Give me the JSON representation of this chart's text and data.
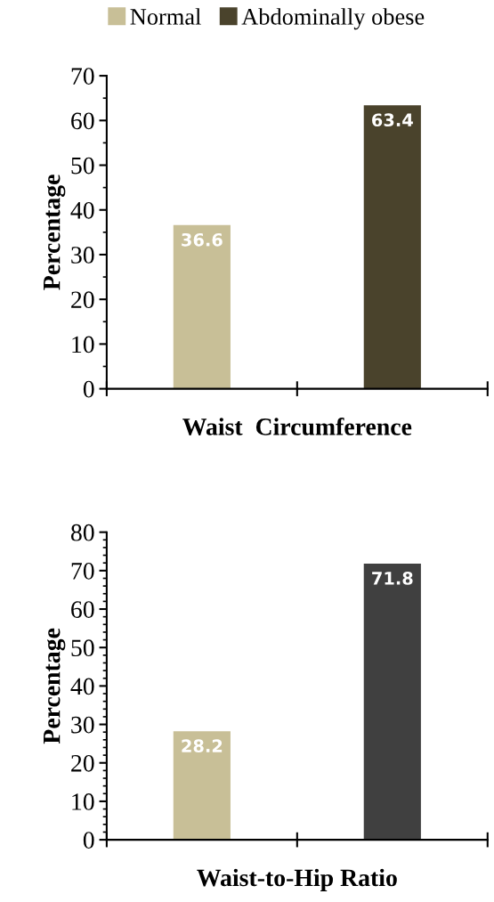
{
  "chart_data": [
    {
      "type": "bar",
      "xlabel": "Waist  Circumference",
      "ylabel": "Percentage",
      "categories": [
        null,
        null
      ],
      "series": [
        {
          "name": "Normal",
          "color": "#c8bf97",
          "values": [
            36.6,
            null
          ]
        },
        {
          "name": "Abdominally obese",
          "color": "#4a432c",
          "values": [
            null,
            63.4
          ]
        }
      ],
      "ylim": [
        0,
        70
      ],
      "yticks": [
        0,
        10,
        20,
        30,
        40,
        50,
        60,
        70
      ],
      "data_labels": true,
      "legend": "top",
      "tick_labels": "y"
    },
    {
      "type": "bar",
      "xlabel": "Waist-to-Hip Ratio",
      "ylabel": "Percentage",
      "categories": [
        null,
        null
      ],
      "series": [
        {
          "color": "#c8bf97",
          "values": [
            28.2,
            null
          ]
        },
        {
          "color": "#404040",
          "values": [
            null,
            71.8
          ]
        }
      ],
      "ylim": [
        0,
        80
      ],
      "yticks": [
        0,
        10,
        20,
        30,
        40,
        50,
        60,
        70,
        80
      ],
      "data_labels": true,
      "tick_labels": "y"
    }
  ]
}
